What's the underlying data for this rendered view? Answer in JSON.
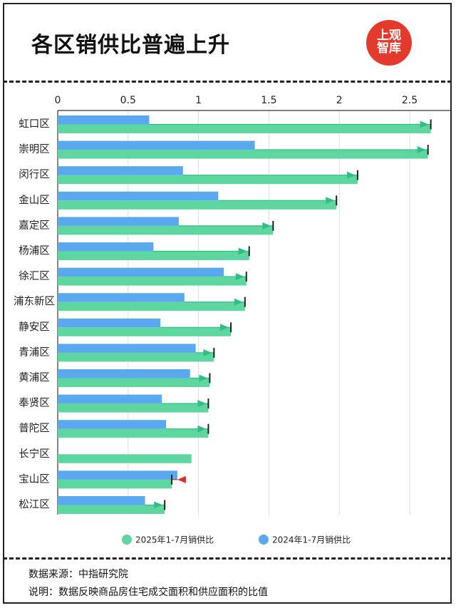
{
  "header": {
    "title": "各区销供比普遍上升",
    "logo_line1": "上观",
    "logo_line2": "智库"
  },
  "chart_data": {
    "type": "bar",
    "title": "各区销供比普遍上升",
    "categories": [
      "虹口区",
      "崇明区",
      "闵行区",
      "金山区",
      "嘉定区",
      "杨浦区",
      "徐汇区",
      "浦东新区",
      "静安区",
      "青浦区",
      "黄浦区",
      "奉贤区",
      "普陀区",
      "长宁区",
      "宝山区",
      "松江区"
    ],
    "series": [
      {
        "name": "2025年1-7月销供比",
        "color": "#5ed6a0",
        "values": [
          2.65,
          2.63,
          2.13,
          1.98,
          1.53,
          1.36,
          1.34,
          1.33,
          1.23,
          1.11,
          1.08,
          1.07,
          1.07,
          0.95,
          0.81,
          0.76
        ]
      },
      {
        "name": "2024年1-7月销供比",
        "color": "#5aa9ee",
        "values": [
          0.65,
          1.4,
          0.89,
          1.14,
          0.86,
          0.68,
          1.18,
          0.9,
          0.73,
          0.98,
          0.94,
          0.74,
          0.77,
          null,
          0.85,
          0.62
        ]
      }
    ],
    "xlim": [
      0,
      2.8
    ],
    "xticks": [
      "0",
      "0.5",
      "1",
      "1.5",
      "2",
      "2.5"
    ],
    "grid": true,
    "legend_position": "bottom",
    "increase_color": "#2fbf85",
    "decrease_color": "#d9302c"
  },
  "footer": {
    "source": "数据来源：中指研究院",
    "note": "说明：数据反映商品房住宅成交面积和供应面积的比值"
  }
}
